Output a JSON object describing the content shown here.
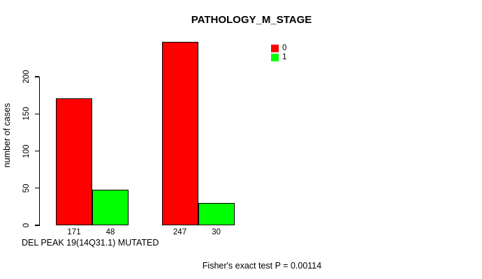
{
  "chart_data": {
    "type": "bar",
    "title": "PATHOLOGY_M_STAGE",
    "ylabel": "number of cases",
    "xlabel": "DEL PEAK 19(14Q31.1) MUTATED",
    "annotation": "Fisher's exact test P = 0.00114",
    "yticks": [
      0,
      50,
      100,
      150,
      200
    ],
    "ylim": [
      0,
      250
    ],
    "grid": false,
    "categories": [
      "",
      ""
    ],
    "series": [
      {
        "name": "0",
        "color": "#FF0000",
        "values": [
          171,
          247
        ]
      },
      {
        "name": "1",
        "color": "#00FF00",
        "values": [
          48,
          30
        ]
      }
    ],
    "legend": {
      "position": "top-right",
      "entries": [
        {
          "label": "0",
          "color": "#FF0000"
        },
        {
          "label": "1",
          "color": "#00FF00"
        }
      ]
    },
    "colors": {
      "foreground": "#000000",
      "background": "#FFFFFF"
    }
  }
}
